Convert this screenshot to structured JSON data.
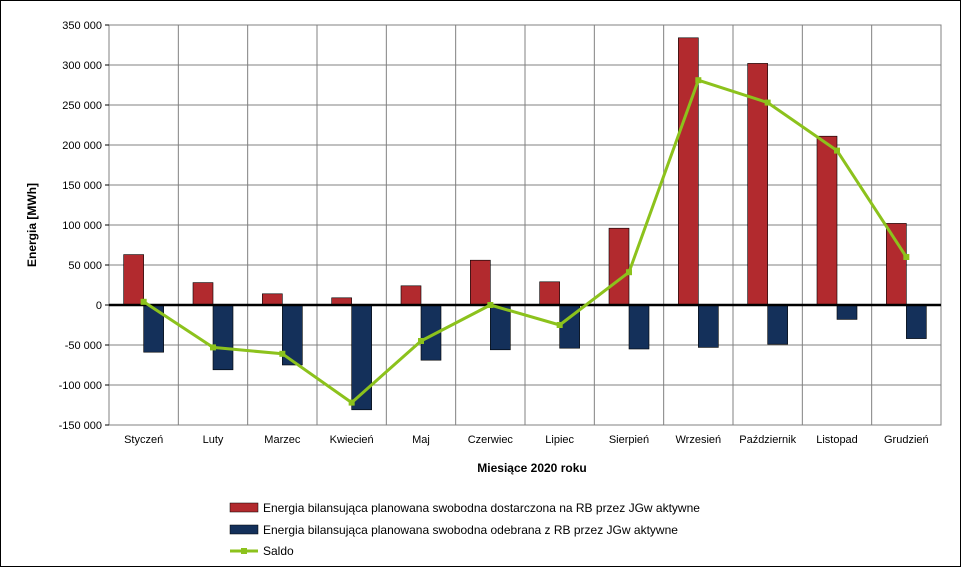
{
  "chart_data": {
    "type": "bar",
    "title": "",
    "xlabel": "Miesiące 2020  roku",
    "ylabel": "Energia [MWh]",
    "ylim": [
      -150000,
      350000
    ],
    "yticks": [
      350000,
      300000,
      250000,
      200000,
      150000,
      100000,
      50000,
      0,
      -50000,
      -100000,
      -150000
    ],
    "ytick_labels": [
      "350 000",
      "300 000",
      "250 000",
      "200 000",
      "150 000",
      "100 000",
      "50 000",
      "0",
      "-50 000",
      "-100 000",
      "-150 000"
    ],
    "grid": true,
    "legend_position": "bottom",
    "categories": [
      "Styczeń",
      "Luty",
      "Marzec",
      "Kwiecień",
      "Maj",
      "Czerwiec",
      "Lipiec",
      "Sierpień",
      "Wrzesień",
      "Październik",
      "Listopad",
      "Grudzień"
    ],
    "series": [
      {
        "name": "Energia bilansująca planowana swobodna dostarczona na RB przez JGw aktywne",
        "type": "bar",
        "color": "#b22a2e",
        "values": [
          63000,
          28000,
          14000,
          9000,
          24000,
          56000,
          29000,
          96000,
          334000,
          302000,
          211000,
          102000
        ]
      },
      {
        "name": "Energia bilansująca planowana swobodna odebrana z RB przez JGw aktywne",
        "type": "bar",
        "color": "#14305a",
        "values": [
          -59000,
          -81000,
          -75000,
          -131000,
          -69000,
          -56000,
          -54000,
          -55000,
          -53000,
          -49000,
          -18000,
          -42000
        ]
      },
      {
        "name": "Saldo",
        "type": "line",
        "color": "#8cc21c",
        "values": [
          4000,
          -53000,
          -61000,
          -122000,
          -45000,
          0,
          -25000,
          41000,
          281000,
          253000,
          193000,
          60000
        ]
      }
    ]
  }
}
